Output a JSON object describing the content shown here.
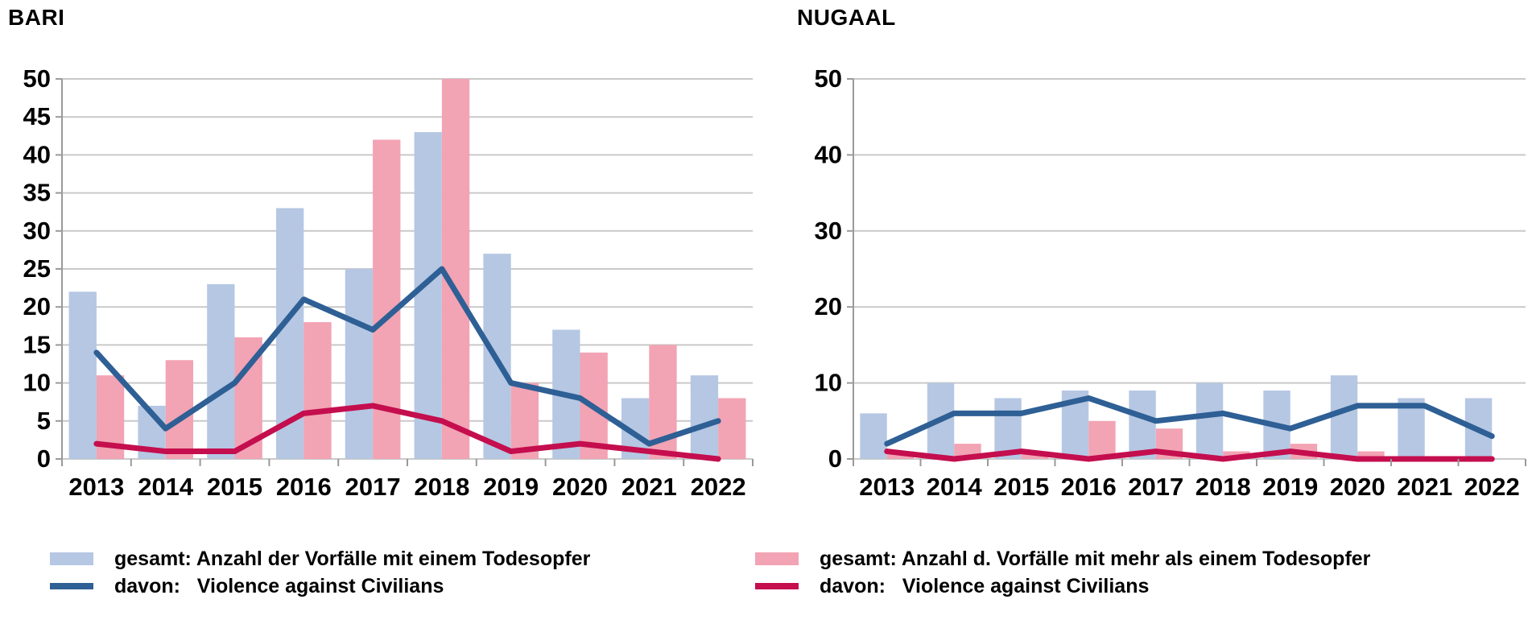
{
  "titles": {
    "left": "BARI",
    "right": "NUGAAL"
  },
  "colors": {
    "bar_single": "#B5C7E3",
    "bar_multi": "#F2A3B4",
    "line_single": "#2E5F95",
    "line_multi": "#C40E4E",
    "grid": "#C9C9C9",
    "axis": "#9A9A9A",
    "text": "#000000"
  },
  "legend": {
    "bar_single_label": "gesamt: Anzahl der Vorfälle mit einem Todesopfer",
    "line_single_label": "davon:   Violence against Civilians",
    "bar_multi_label": "gesamt: Anzahl d. Vorfälle mit mehr als einem Todesopfer",
    "line_multi_label": "davon:   Violence against Civilians"
  },
  "chart_data": [
    {
      "type": "bar",
      "title": "BARI",
      "categories": [
        "2013",
        "2014",
        "2015",
        "2016",
        "2017",
        "2018",
        "2019",
        "2020",
        "2021",
        "2022"
      ],
      "series": [
        {
          "name": "gesamt: Anzahl der Vorfälle mit einem Todesopfer",
          "type": "bar",
          "color": "#B5C7E3",
          "values": [
            22,
            7,
            23,
            33,
            25,
            43,
            27,
            17,
            8,
            11
          ]
        },
        {
          "name": "gesamt: Anzahl d. Vorfälle mit mehr als einem Todesopfer",
          "type": "bar",
          "color": "#F2A3B4",
          "values": [
            11,
            13,
            16,
            18,
            42,
            50,
            10,
            14,
            15,
            8
          ]
        },
        {
          "name": "davon: Violence against Civilians",
          "type": "line",
          "color": "#2E5F95",
          "values": [
            14,
            4,
            10,
            21,
            17,
            25,
            10,
            8,
            2,
            5
          ]
        },
        {
          "name": "davon: Violence against Civilians",
          "type": "line",
          "color": "#C40E4E",
          "values": [
            2,
            1,
            1,
            6,
            7,
            5,
            1,
            2,
            1,
            0
          ]
        }
      ],
      "xlabel": "",
      "ylabel": "",
      "ylim": [
        0,
        50
      ],
      "yticks": [
        0,
        5,
        10,
        15,
        20,
        25,
        30,
        35,
        40,
        45,
        50
      ],
      "grid": true,
      "legend_position": "bottom"
    },
    {
      "type": "bar",
      "title": "NUGAAL",
      "categories": [
        "2013",
        "2014",
        "2015",
        "2016",
        "2017",
        "2018",
        "2019",
        "2020",
        "2021",
        "2022"
      ],
      "series": [
        {
          "name": "gesamt: Anzahl der Vorfälle mit einem Todesopfer",
          "type": "bar",
          "color": "#B5C7E3",
          "values": [
            6,
            10,
            8,
            9,
            9,
            10,
            9,
            11,
            8,
            8
          ]
        },
        {
          "name": "gesamt: Anzahl d. Vorfälle mit mehr als einem Todesopfer",
          "type": "bar",
          "color": "#F2A3B4",
          "values": [
            1,
            2,
            1,
            5,
            4,
            1,
            2,
            1,
            0,
            0
          ]
        },
        {
          "name": "davon: Violence against Civilians",
          "type": "line",
          "color": "#2E5F95",
          "values": [
            2,
            6,
            6,
            8,
            5,
            6,
            4,
            7,
            7,
            3
          ]
        },
        {
          "name": "davon: Violence against Civilians",
          "type": "line",
          "color": "#C40E4E",
          "values": [
            1,
            0,
            1,
            0,
            1,
            0,
            1,
            0,
            0,
            0
          ]
        }
      ],
      "xlabel": "",
      "ylabel": "",
      "ylim": [
        0,
        50
      ],
      "yticks": [
        0,
        10,
        20,
        30,
        40,
        50
      ],
      "grid": true,
      "legend_position": "bottom"
    }
  ]
}
